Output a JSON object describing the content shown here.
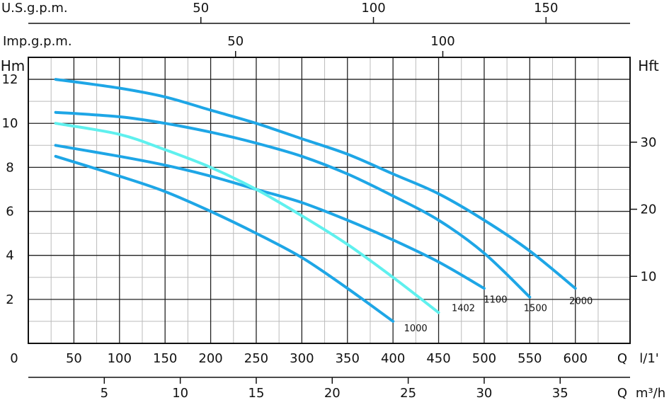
{
  "chart_data": {
    "type": "line",
    "title": "",
    "colors": {
      "default": "#1ea6e6",
      "highlight": "#5ff0ee",
      "grid_major": "#222222",
      "grid_minor": "#bbbbbb"
    },
    "axes": {
      "flow_lmin": {
        "label": "Q",
        "unit": "l/1'",
        "range": [
          0,
          660
        ],
        "ticks": [
          50,
          100,
          150,
          200,
          250,
          300,
          350,
          400,
          450,
          500,
          550,
          600
        ],
        "zero_label": "0"
      },
      "flow_m3h": {
        "label": "Q",
        "unit": "m³/h",
        "ticks": [
          5,
          10,
          15,
          20,
          25,
          30,
          35
        ]
      },
      "flow_usgpm": {
        "label": "U.S.g.p.m.",
        "ticks": [
          50,
          100,
          150
        ]
      },
      "flow_impgpm": {
        "label": "Imp.g.p.m.",
        "ticks": [
          50,
          100
        ]
      },
      "head_m": {
        "label": "Hm",
        "range": [
          0,
          13
        ],
        "ticks": [
          2,
          4,
          6,
          8,
          10,
          12
        ]
      },
      "head_ft": {
        "label": "Hft",
        "ticks": [
          10,
          20,
          30
        ]
      }
    },
    "grid": true,
    "series": [
      {
        "name": "1000",
        "color": "#1ea6e6",
        "x": [
          30,
          100,
          150,
          200,
          250,
          300,
          350,
          400
        ],
        "y": [
          8.5,
          7.6,
          6.9,
          6.0,
          5.0,
          3.9,
          2.5,
          1.0
        ]
      },
      {
        "name": "1402",
        "color": "#5ff0ee",
        "x": [
          30,
          100,
          150,
          200,
          250,
          300,
          350,
          400,
          450
        ],
        "y": [
          10.0,
          9.5,
          8.8,
          8.0,
          7.0,
          5.8,
          4.5,
          3.0,
          1.4
        ]
      },
      {
        "name": "1100",
        "color": "#1ea6e6",
        "x": [
          30,
          100,
          150,
          200,
          250,
          300,
          350,
          400,
          450,
          500
        ],
        "y": [
          9.0,
          8.5,
          8.1,
          7.6,
          7.0,
          6.4,
          5.6,
          4.7,
          3.7,
          2.5
        ]
      },
      {
        "name": "1500",
        "color": "#1ea6e6",
        "x": [
          30,
          100,
          150,
          200,
          250,
          300,
          350,
          400,
          450,
          500,
          550
        ],
        "y": [
          10.5,
          10.3,
          10.0,
          9.6,
          9.1,
          8.5,
          7.7,
          6.7,
          5.6,
          4.1,
          2.1
        ]
      },
      {
        "name": "2000",
        "color": "#1ea6e6",
        "x": [
          30,
          100,
          150,
          200,
          250,
          300,
          350,
          400,
          450,
          500,
          550,
          600
        ],
        "y": [
          12.0,
          11.6,
          11.2,
          10.6,
          10.0,
          9.3,
          8.6,
          7.7,
          6.8,
          5.6,
          4.2,
          2.5
        ]
      }
    ]
  }
}
